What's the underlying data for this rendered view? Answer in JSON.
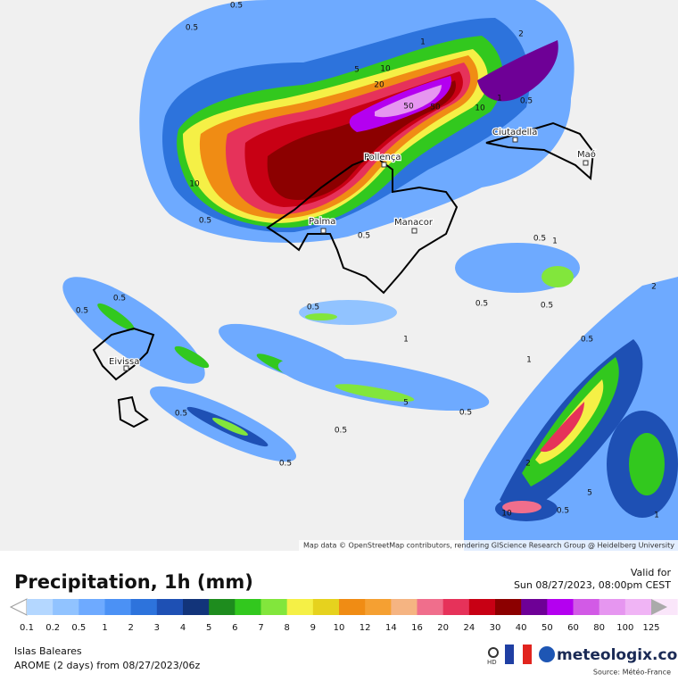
{
  "map": {
    "places": [
      "Palma",
      "Pollença",
      "Manacor",
      "Ciutadella",
      "Maó",
      "Eivissa"
    ],
    "contour_labels": [
      "0.5",
      "0.5",
      "1",
      "5",
      "10",
      "20",
      "50",
      "50",
      "10",
      "2",
      "1",
      "0.5",
      "10",
      "0.5",
      "0.5",
      "0.5",
      "1",
      "2",
      "0.5",
      "0.5",
      "0.5",
      "0.5",
      "0.5",
      "1",
      "5",
      "0.5",
      "0.5",
      "0.5",
      "1",
      "0.5",
      "2",
      "5",
      "0.5",
      "10",
      "1",
      "0.5"
    ],
    "attribution": "Map data © OpenStreetMap contributors, rendering GIScience Research Group @ Heidelberg University"
  },
  "footer": {
    "title": "Precipitation, 1h (mm)",
    "valid_label": "Valid for",
    "valid_time": "Sun 08/27/2023, 08:00pm CEST",
    "region": "Islas Baleares",
    "model": "AROME (2 days) from 08/27/2023/06z",
    "hd": "HD",
    "brand": "meteologix.com",
    "source": "Source: Météo-France"
  },
  "legend": {
    "labels": [
      "0.1",
      "0.2",
      "0.5",
      "1",
      "2",
      "3",
      "4",
      "5",
      "6",
      "7",
      "8",
      "9",
      "10",
      "12",
      "14",
      "16",
      "20",
      "24",
      "30",
      "40",
      "50",
      "60",
      "80",
      "100",
      "125"
    ],
    "colors": [
      "#b4d7ff",
      "#91c3ff",
      "#6eaaff",
      "#4b91f5",
      "#2d73dc",
      "#1e50b4",
      "#12347a",
      "#1e8c1e",
      "#32c81e",
      "#82e63c",
      "#f5f046",
      "#e6d21e",
      "#f08c14",
      "#f5a032",
      "#f5b482",
      "#f06e8c",
      "#e6325a",
      "#c80014",
      "#8c0000",
      "#6e0096",
      "#b400f0",
      "#d25ae6",
      "#e696f0",
      "#f0b4f5",
      "#fae6fa"
    ],
    "below_color": "#ffffff",
    "above_color": "#aaaaaa"
  }
}
